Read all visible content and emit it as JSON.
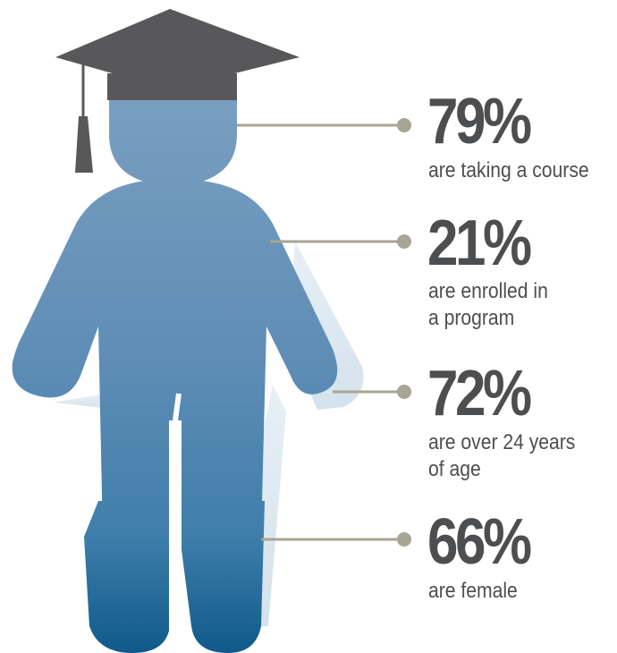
{
  "stats": [
    {
      "value": "79%",
      "description": "are taking a course"
    },
    {
      "value": "21%",
      "description": "are enrolled in\na program"
    },
    {
      "value": "72%",
      "description": "are over 24 years\nof age"
    },
    {
      "value": "66%",
      "description": "are female"
    }
  ],
  "colors": {
    "figure_top": "#7ba0c2",
    "figure_mid": "#3f82ad",
    "figure_bottom": "#0f5a8a",
    "cap": "#58585a",
    "leader_line": "#a7a593",
    "text": "#4d4e50"
  },
  "icons": {
    "figure": "graduate-person-icon",
    "cap": "graduation-cap-icon"
  }
}
